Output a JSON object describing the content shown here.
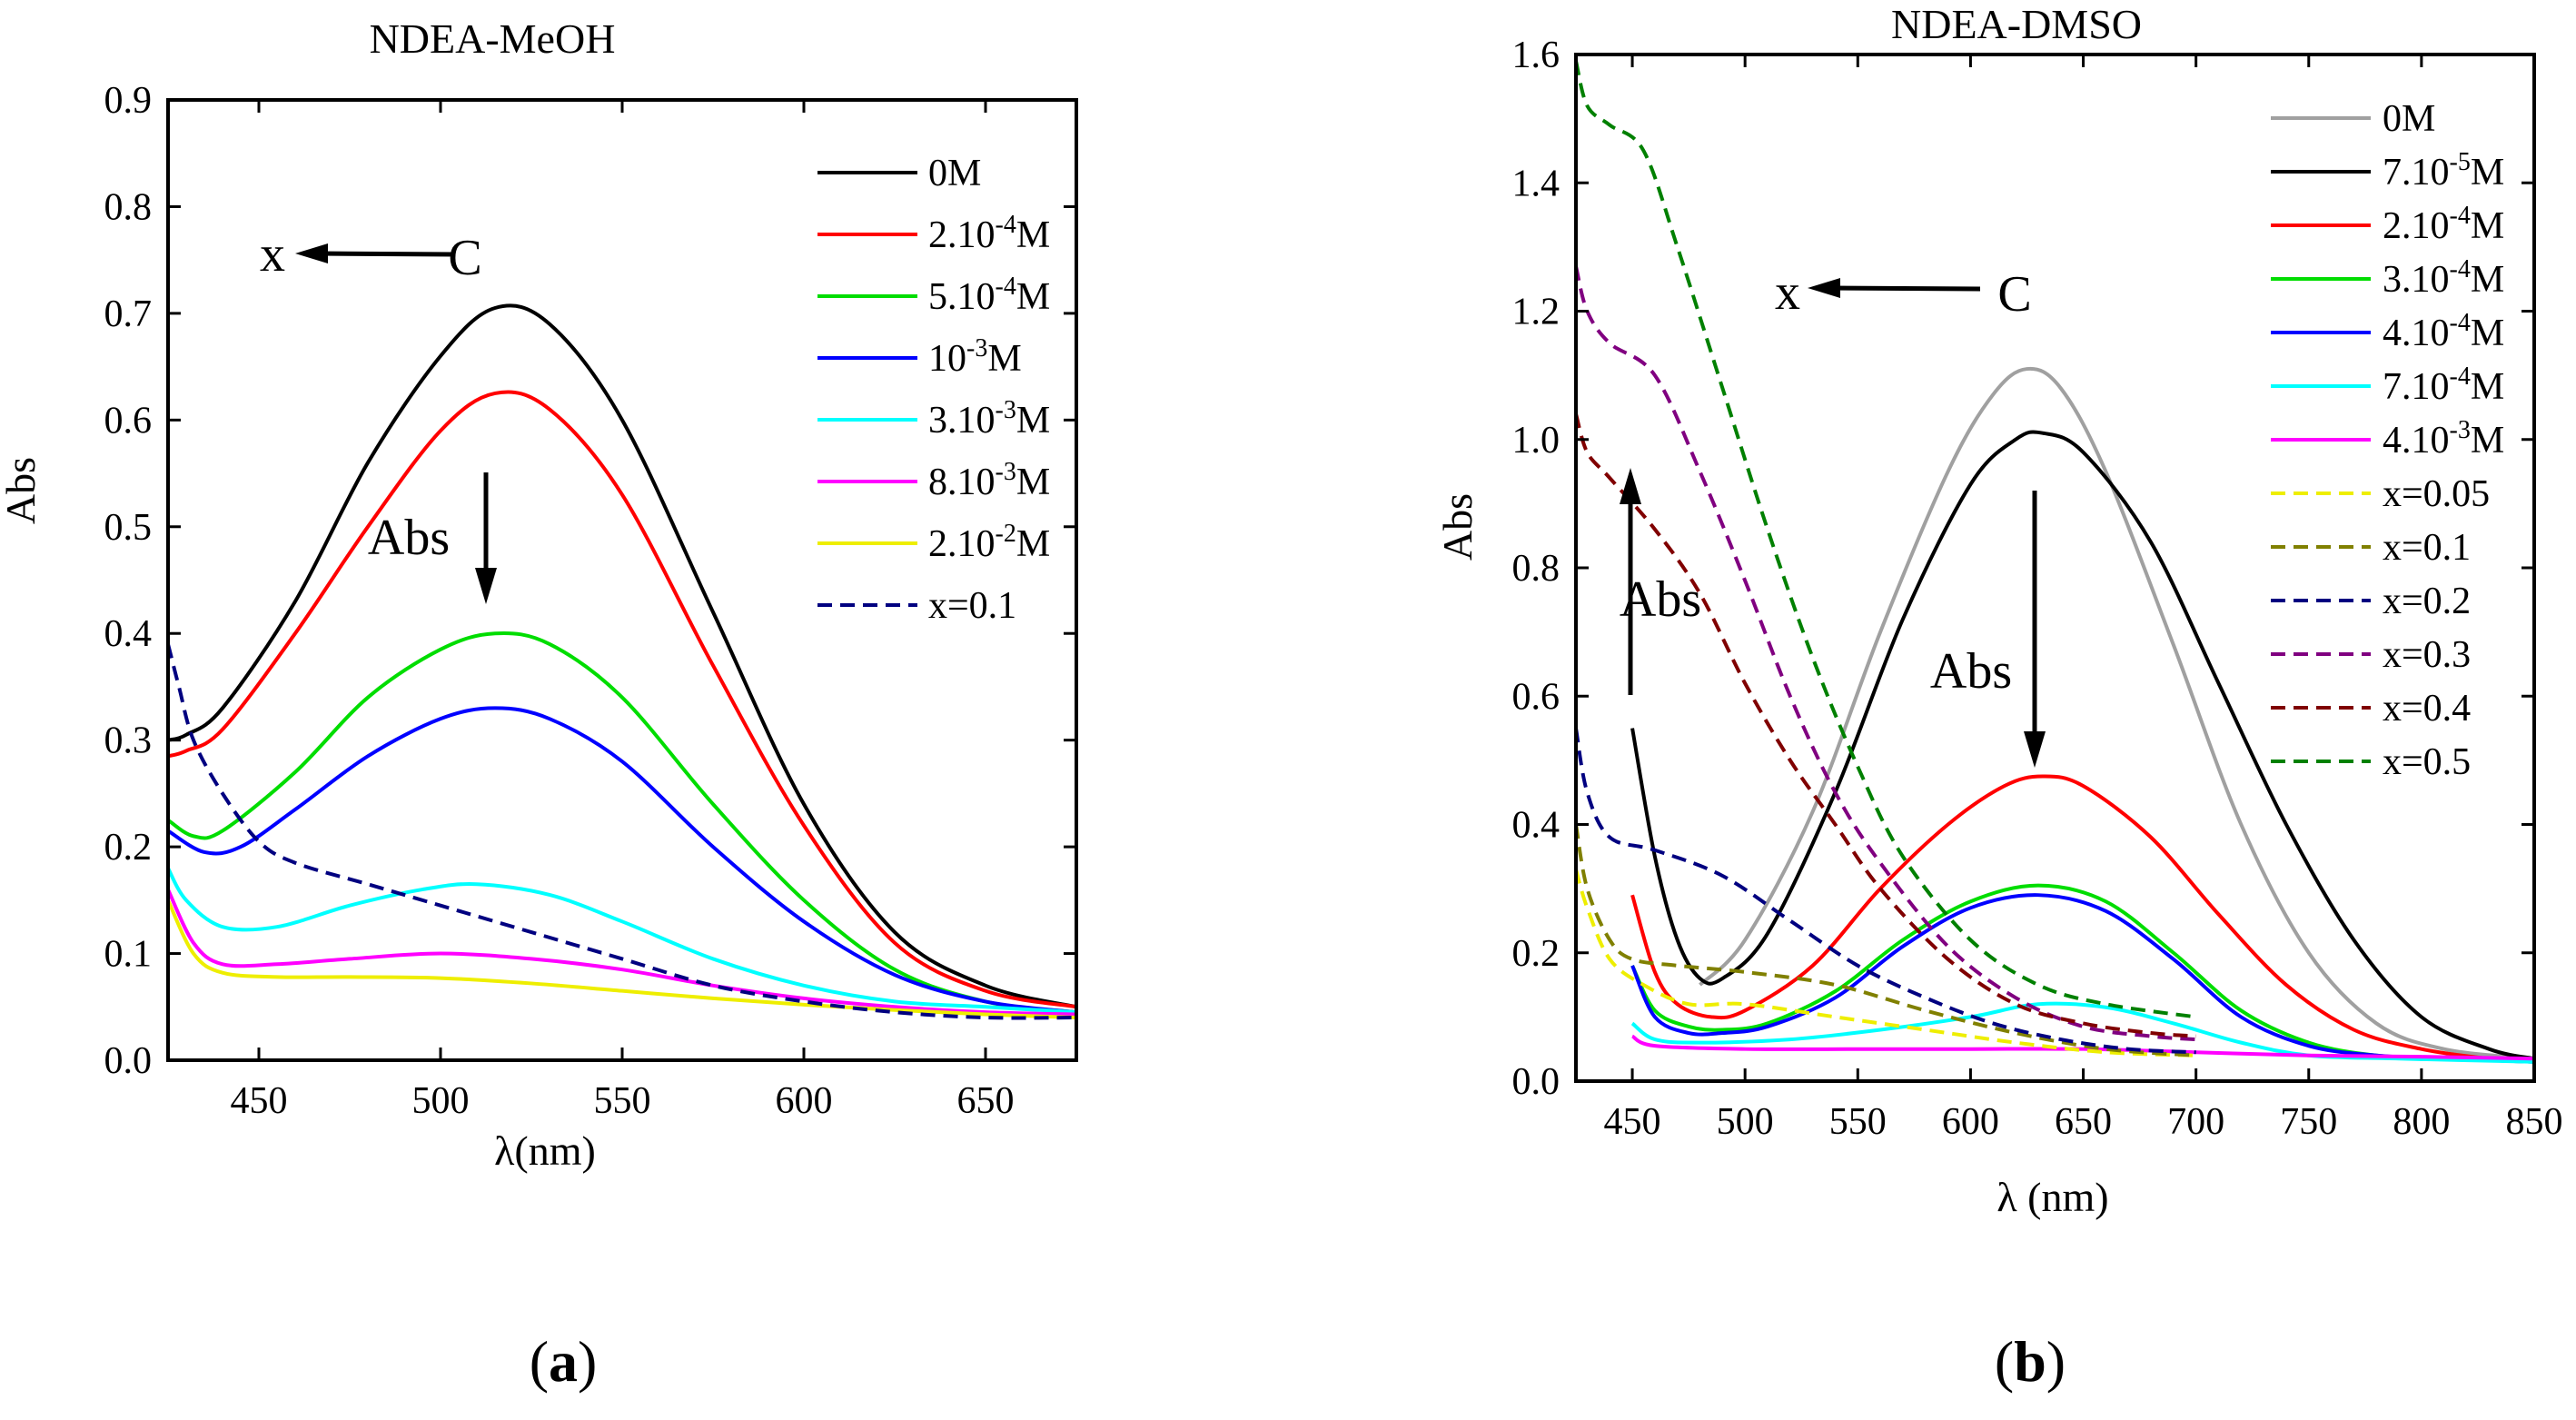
{
  "chart_data": [
    {
      "type": "line",
      "panel_label_open": "(",
      "panel_label_letter": "a",
      "panel_label_close": ")",
      "title": "NDEA-MeOH",
      "xlabel": "λ(nm)",
      "ylabel": "Abs",
      "xlim": [
        425,
        675
      ],
      "ylim": [
        0,
        0.9
      ],
      "xticks": [
        450,
        500,
        550,
        600,
        650
      ],
      "yticks": [
        0.0,
        0.1,
        0.2,
        0.3,
        0.4,
        0.5,
        0.6,
        0.7,
        0.8,
        0.9
      ],
      "ytick_labels": [
        "0.0",
        "0.1",
        "0.2",
        "0.3",
        "0.4",
        "0.5",
        "0.6",
        "0.7",
        "0.8",
        "0.9"
      ],
      "legend_position": "top-right",
      "annotations": {
        "x_label": "x",
        "c_label": "C",
        "abs_label": "Abs"
      },
      "series": [
        {
          "name": "0M",
          "legend": {
            "base": "0M",
            "sup": "",
            "suffix": ""
          },
          "color": "#000000",
          "dash": false,
          "x": [
            425,
            430,
            440,
            460,
            480,
            500,
            515,
            530,
            550,
            575,
            600,
            625,
            650,
            675
          ],
          "y": [
            0.3,
            0.305,
            0.33,
            0.43,
            0.56,
            0.66,
            0.705,
            0.69,
            0.6,
            0.42,
            0.24,
            0.12,
            0.07,
            0.05
          ]
        },
        {
          "name": "2.10-4M",
          "legend": {
            "base": "2.10",
            "sup": "-4",
            "suffix": "M"
          },
          "color": "#ff0000",
          "dash": false,
          "x": [
            425,
            430,
            440,
            460,
            480,
            500,
            515,
            530,
            550,
            575,
            600,
            625,
            650,
            675
          ],
          "y": [
            0.285,
            0.29,
            0.31,
            0.4,
            0.5,
            0.59,
            0.625,
            0.61,
            0.53,
            0.37,
            0.22,
            0.11,
            0.065,
            0.05
          ]
        },
        {
          "name": "5.10-4M",
          "legend": {
            "base": "5.10",
            "sup": "-4",
            "suffix": "M"
          },
          "color": "#00dd00",
          "dash": false,
          "x": [
            425,
            432,
            440,
            460,
            480,
            500,
            515,
            530,
            550,
            575,
            600,
            625,
            650,
            675
          ],
          "y": [
            0.225,
            0.21,
            0.215,
            0.27,
            0.34,
            0.385,
            0.4,
            0.39,
            0.34,
            0.24,
            0.15,
            0.085,
            0.055,
            0.045
          ]
        },
        {
          "name": "10-3M",
          "legend": {
            "base": "10",
            "sup": "-3",
            "suffix": "M"
          },
          "color": "#0000ff",
          "dash": false,
          "x": [
            425,
            435,
            445,
            460,
            480,
            500,
            515,
            530,
            550,
            575,
            600,
            625,
            650,
            675
          ],
          "y": [
            0.215,
            0.195,
            0.2,
            0.235,
            0.285,
            0.32,
            0.33,
            0.32,
            0.28,
            0.2,
            0.13,
            0.08,
            0.055,
            0.045
          ]
        },
        {
          "name": "3.10-3M",
          "legend": {
            "base": "3.10",
            "sup": "-3",
            "suffix": "M"
          },
          "color": "#00ffff",
          "dash": false,
          "x": [
            425,
            430,
            440,
            455,
            475,
            495,
            510,
            530,
            550,
            575,
            600,
            625,
            650,
            675
          ],
          "y": [
            0.18,
            0.15,
            0.125,
            0.125,
            0.145,
            0.16,
            0.165,
            0.155,
            0.13,
            0.095,
            0.07,
            0.055,
            0.05,
            0.045
          ]
        },
        {
          "name": "8.10-3M",
          "legend": {
            "base": "8.10",
            "sup": "-3",
            "suffix": "M"
          },
          "color": "#ff00ff",
          "dash": false,
          "x": [
            425,
            432,
            440,
            455,
            475,
            500,
            525,
            550,
            575,
            600,
            625,
            650,
            675
          ],
          "y": [
            0.16,
            0.11,
            0.09,
            0.09,
            0.095,
            0.1,
            0.095,
            0.085,
            0.07,
            0.058,
            0.05,
            0.045,
            0.043
          ]
        },
        {
          "name": "2.10-2M",
          "legend": {
            "base": "2.10",
            "sup": "-2",
            "suffix": "M"
          },
          "color": "#eeee00",
          "dash": false,
          "x": [
            425,
            432,
            440,
            455,
            475,
            500,
            525,
            550,
            575,
            600,
            625,
            650,
            675
          ],
          "y": [
            0.15,
            0.1,
            0.082,
            0.078,
            0.078,
            0.077,
            0.072,
            0.065,
            0.058,
            0.052,
            0.047,
            0.043,
            0.04
          ]
        },
        {
          "name": "x=0.1",
          "legend": {
            "base": "x=0.1",
            "sup": "",
            "suffix": ""
          },
          "color": "#000080",
          "dash": true,
          "x": [
            425,
            428,
            432,
            440,
            450,
            460,
            480,
            500,
            525,
            550,
            575,
            600,
            625,
            650,
            675
          ],
          "y": [
            0.39,
            0.35,
            0.3,
            0.25,
            0.205,
            0.185,
            0.165,
            0.145,
            0.12,
            0.095,
            0.07,
            0.055,
            0.045,
            0.04,
            0.04
          ]
        }
      ]
    },
    {
      "type": "line",
      "panel_label_open": "(",
      "panel_label_letter": "b",
      "panel_label_close": ")",
      "title": "NDEA-DMSO",
      "xlabel": "λ (nm)",
      "ylabel": "Abs",
      "xlim": [
        425,
        850
      ],
      "ylim": [
        0,
        1.6
      ],
      "xticks": [
        450,
        500,
        550,
        600,
        650,
        700,
        750,
        800,
        850
      ],
      "yticks": [
        0.0,
        0.2,
        0.4,
        0.6,
        0.8,
        1.0,
        1.2,
        1.4,
        1.6
      ],
      "ytick_labels": [
        "0.0",
        "0.2",
        "0.4",
        "0.6",
        "0.8",
        "1.0",
        "1.2",
        "1.4",
        "1.6"
      ],
      "legend_position": "top-right",
      "annotations": {
        "x_label": "x",
        "c_label": "C",
        "abs_up_label": "Abs",
        "abs_down_label": "Abs"
      },
      "series": [
        {
          "name": "0M",
          "legend": {
            "base": "0M",
            "sup": "",
            "suffix": ""
          },
          "color": "#a0a0a0",
          "dash": false,
          "x": [
            480,
            500,
            530,
            560,
            590,
            610,
            625,
            640,
            660,
            690,
            720,
            750,
            780,
            810,
            850
          ],
          "y": [
            0.15,
            0.22,
            0.42,
            0.7,
            0.95,
            1.07,
            1.11,
            1.08,
            0.95,
            0.68,
            0.4,
            0.2,
            0.09,
            0.05,
            0.035
          ]
        },
        {
          "name": "7.10-5M",
          "legend": {
            "base": "7.10",
            "sup": "-5",
            "suffix": "M"
          },
          "color": "#000000",
          "dash": false,
          "x": [
            450,
            460,
            470,
            480,
            490,
            510,
            540,
            570,
            600,
            620,
            632,
            650,
            680,
            710,
            740,
            770,
            800,
            830,
            850
          ],
          "y": [
            0.55,
            0.35,
            0.22,
            0.16,
            0.16,
            0.23,
            0.45,
            0.72,
            0.93,
            1.0,
            1.01,
            0.98,
            0.84,
            0.62,
            0.4,
            0.22,
            0.1,
            0.05,
            0.035
          ]
        },
        {
          "name": "2.10-4M",
          "legend": {
            "base": "2.10",
            "sup": "-4",
            "suffix": "M"
          },
          "color": "#ff0000",
          "dash": false,
          "x": [
            450,
            460,
            470,
            485,
            500,
            530,
            560,
            590,
            615,
            632,
            650,
            680,
            710,
            740,
            770,
            800,
            830,
            850
          ],
          "y": [
            0.29,
            0.17,
            0.12,
            0.1,
            0.11,
            0.18,
            0.3,
            0.4,
            0.46,
            0.475,
            0.46,
            0.38,
            0.26,
            0.15,
            0.08,
            0.05,
            0.035,
            0.03
          ]
        },
        {
          "name": "3.10-4M",
          "legend": {
            "base": "3.10",
            "sup": "-4",
            "suffix": "M"
          },
          "color": "#00dd00",
          "dash": false,
          "x": [
            450,
            460,
            475,
            490,
            510,
            540,
            570,
            600,
            630,
            660,
            690,
            720,
            750,
            780,
            810,
            850
          ],
          "y": [
            0.18,
            0.11,
            0.085,
            0.08,
            0.09,
            0.14,
            0.22,
            0.28,
            0.305,
            0.28,
            0.2,
            0.11,
            0.06,
            0.04,
            0.035,
            0.03
          ]
        },
        {
          "name": "4.10-4M",
          "legend": {
            "base": "4.10",
            "sup": "-4",
            "suffix": "M"
          },
          "color": "#0000ff",
          "dash": false,
          "x": [
            450,
            460,
            475,
            490,
            510,
            540,
            570,
            600,
            630,
            660,
            690,
            720,
            750,
            780,
            810,
            850
          ],
          "y": [
            0.18,
            0.1,
            0.075,
            0.075,
            0.085,
            0.13,
            0.21,
            0.27,
            0.29,
            0.265,
            0.19,
            0.1,
            0.055,
            0.04,
            0.035,
            0.03
          ]
        },
        {
          "name": "7.10-4M",
          "legend": {
            "base": "7.10",
            "sup": "-4",
            "suffix": "M"
          },
          "color": "#00ffff",
          "dash": false,
          "x": [
            450,
            460,
            480,
            520,
            560,
            600,
            630,
            660,
            690,
            720,
            750,
            790,
            850
          ],
          "y": [
            0.09,
            0.065,
            0.06,
            0.065,
            0.08,
            0.1,
            0.12,
            0.115,
            0.09,
            0.06,
            0.04,
            0.035,
            0.03
          ]
        },
        {
          "name": "4.10-3M",
          "legend": {
            "base": "4.10",
            "sup": "-3",
            "suffix": "M"
          },
          "color": "#ff00ff",
          "dash": false,
          "x": [
            450,
            460,
            500,
            550,
            600,
            650,
            700,
            750,
            800,
            850
          ],
          "y": [
            0.07,
            0.055,
            0.05,
            0.05,
            0.05,
            0.05,
            0.045,
            0.04,
            0.038,
            0.035
          ]
        },
        {
          "name": "x=0.05",
          "legend": {
            "base": "x=0.05",
            "sup": "",
            "suffix": ""
          },
          "color": "#eeee00",
          "dash": true,
          "x": [
            425,
            430,
            440,
            455,
            475,
            500,
            540,
            580,
            620,
            660,
            700
          ],
          "y": [
            0.33,
            0.27,
            0.19,
            0.15,
            0.12,
            0.12,
            0.1,
            0.08,
            0.06,
            0.045,
            0.04
          ]
        },
        {
          "name": "x=0.1",
          "legend": {
            "base": "x=0.1",
            "sup": "",
            "suffix": ""
          },
          "color": "#808000",
          "dash": true,
          "x": [
            425,
            430,
            440,
            450,
            470,
            500,
            540,
            580,
            620,
            660,
            700
          ],
          "y": [
            0.4,
            0.3,
            0.22,
            0.19,
            0.18,
            0.17,
            0.15,
            0.11,
            0.075,
            0.05,
            0.04
          ]
        },
        {
          "name": "x=0.2",
          "legend": {
            "base": "x=0.2",
            "sup": "",
            "suffix": ""
          },
          "color": "#000080",
          "dash": true,
          "x": [
            425,
            430,
            440,
            460,
            490,
            520,
            550,
            580,
            610,
            640,
            670,
            700
          ],
          "y": [
            0.55,
            0.45,
            0.38,
            0.36,
            0.32,
            0.25,
            0.18,
            0.13,
            0.09,
            0.065,
            0.05,
            0.045
          ]
        },
        {
          "name": "x=0.3",
          "legend": {
            "base": "x=0.3",
            "sup": "",
            "suffix": ""
          },
          "color": "#800080",
          "dash": true,
          "x": [
            425,
            430,
            440,
            460,
            480,
            500,
            520,
            540,
            560,
            590,
            620,
            650,
            680,
            700
          ],
          "y": [
            1.27,
            1.2,
            1.15,
            1.1,
            0.95,
            0.78,
            0.6,
            0.45,
            0.34,
            0.21,
            0.13,
            0.085,
            0.07,
            0.065
          ]
        },
        {
          "name": "x=0.4",
          "legend": {
            "base": "x=0.4",
            "sup": "",
            "suffix": ""
          },
          "color": "#800000",
          "dash": true,
          "x": [
            425,
            430,
            440,
            460,
            480,
            500,
            520,
            540,
            560,
            590,
            620,
            650,
            680,
            700
          ],
          "y": [
            1.04,
            0.98,
            0.94,
            0.86,
            0.76,
            0.62,
            0.5,
            0.4,
            0.3,
            0.19,
            0.12,
            0.09,
            0.075,
            0.07
          ]
        },
        {
          "name": "x=0.5",
          "legend": {
            "base": "x=0.5",
            "sup": "",
            "suffix": ""
          },
          "color": "#008000",
          "dash": true,
          "x": [
            425,
            430,
            440,
            455,
            470,
            490,
            510,
            530,
            550,
            570,
            600,
            630,
            660,
            700
          ],
          "y": [
            1.59,
            1.52,
            1.49,
            1.45,
            1.3,
            1.08,
            0.86,
            0.66,
            0.49,
            0.35,
            0.22,
            0.15,
            0.12,
            0.1
          ]
        }
      ]
    }
  ]
}
